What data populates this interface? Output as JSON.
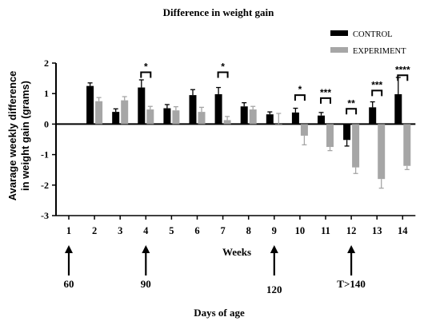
{
  "chart_data": {
    "type": "bar",
    "title": "Difference in weight gain",
    "ylabel_lines": [
      "Avarage weekly difference",
      "in weight gain (grams)"
    ],
    "xlabel": "Weeks",
    "categories": [
      "1",
      "2",
      "3",
      "4",
      "5",
      "6",
      "7",
      "8",
      "9",
      "10",
      "11",
      "12",
      "13",
      "14"
    ],
    "ylim": [
      -3,
      2
    ],
    "yticks": [
      2,
      1,
      0,
      -1,
      -2,
      -3
    ],
    "series": [
      {
        "name": "CONTROL",
        "color": "#000000",
        "values": [
          null,
          1.25,
          0.4,
          1.2,
          0.52,
          0.95,
          0.98,
          0.58,
          0.32,
          0.38,
          0.28,
          -0.52,
          0.55,
          0.98
        ],
        "errors": [
          null,
          0.1,
          0.1,
          0.25,
          0.12,
          0.18,
          0.22,
          0.12,
          0.08,
          0.14,
          0.1,
          0.2,
          0.18,
          0.55
        ]
      },
      {
        "name": "EXPERIMENT",
        "color": "#a6a6a6",
        "values": [
          null,
          0.75,
          0.78,
          0.48,
          0.45,
          0.4,
          0.13,
          0.48,
          0.0,
          -0.38,
          -0.75,
          -1.42,
          -1.8,
          -1.37
        ],
        "errors": [
          null,
          0.12,
          0.12,
          0.1,
          0.12,
          0.15,
          0.12,
          0.1,
          0.35,
          0.3,
          0.12,
          0.2,
          0.3,
          0.12
        ]
      }
    ],
    "significance": [
      {
        "week": "4",
        "label": "*",
        "y": 1.7
      },
      {
        "week": "7",
        "label": "*",
        "y": 1.7
      },
      {
        "week": "10",
        "label": "*",
        "y": 0.95
      },
      {
        "week": "11",
        "label": "***",
        "y": 0.85
      },
      {
        "week": "12",
        "label": "**",
        "y": 0.5
      },
      {
        "week": "13",
        "label": "***",
        "y": 1.1
      },
      {
        "week": "14",
        "label": "****",
        "y": 1.6
      }
    ],
    "days_label": "Days of age",
    "day_markers": [
      {
        "week": "1",
        "label": "60"
      },
      {
        "week": "4",
        "label": "90"
      },
      {
        "week": "9",
        "label": "120"
      },
      {
        "week": "12",
        "label": "T>140"
      }
    ],
    "legend_position": "top-right",
    "grid": false
  }
}
